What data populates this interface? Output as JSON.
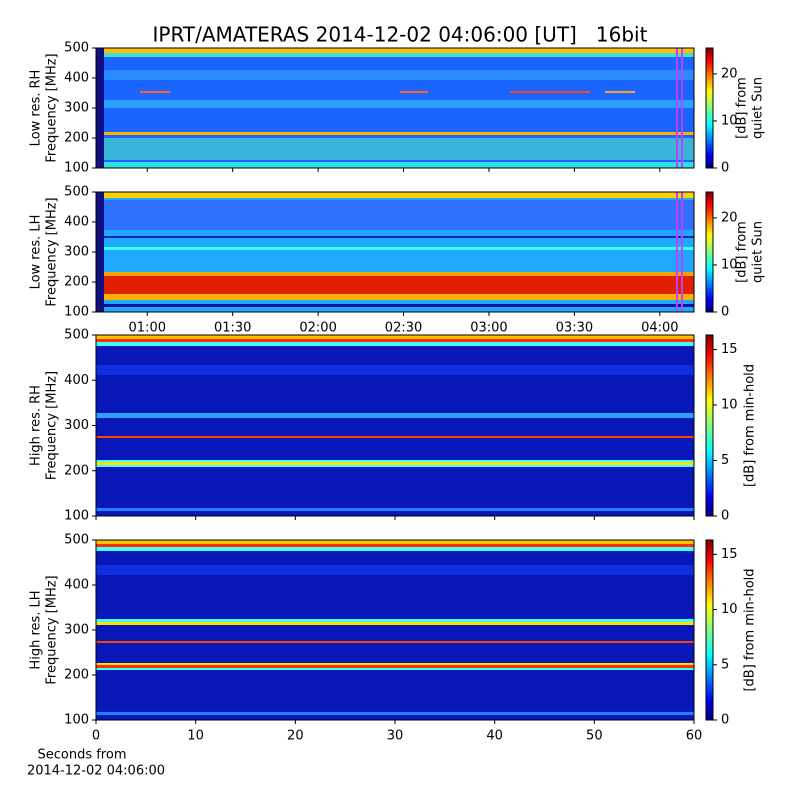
{
  "chart_data": [
    {
      "type": "spectrogram",
      "title": "IPRT/AMATERAS 2014-12-02 04:06:00 [UT]   16bit",
      "ylabel": [
        "Low res. RH",
        "Frequency [MHz]"
      ],
      "ylim": [
        100,
        500
      ],
      "yticks": [
        100,
        200,
        300,
        400,
        500
      ],
      "colorbar_label": [
        "[dB] from",
        "quiet Sun"
      ],
      "clim": [
        0,
        25.5
      ],
      "cticks": [
        0,
        10,
        20
      ]
    },
    {
      "type": "spectrogram",
      "ylabel": [
        "Low res. LH",
        "Frequency [MHz]"
      ],
      "ylim": [
        100,
        500
      ],
      "yticks": [
        100,
        200,
        300,
        400,
        500
      ],
      "xlim": [
        42,
        252
      ],
      "xticks": [
        {
          "value": 60,
          "label": "01:00"
        },
        {
          "value": 90,
          "label": "01:30"
        },
        {
          "value": 120,
          "label": "02:00"
        },
        {
          "value": 150,
          "label": "02:30"
        },
        {
          "value": 180,
          "label": "03:00"
        },
        {
          "value": 210,
          "label": "03:30"
        },
        {
          "value": 240,
          "label": "04:00"
        }
      ],
      "colorbar_label": [
        "[dB] from",
        "quiet Sun"
      ],
      "clim": [
        0,
        25.5
      ],
      "cticks": [
        0,
        10,
        20
      ]
    },
    {
      "type": "spectrogram",
      "ylabel": [
        "High res. RH",
        "Frequency [MHz]"
      ],
      "ylim": [
        100,
        500
      ],
      "yticks": [
        100,
        200,
        300,
        400,
        500
      ],
      "colorbar_label": [
        "[dB] from min-hold"
      ],
      "clim": [
        0,
        16.3
      ],
      "cticks": [
        0,
        5,
        10,
        15
      ]
    },
    {
      "type": "spectrogram",
      "ylabel": [
        "High res. LH",
        "Frequency [MHz]"
      ],
      "ylim": [
        100,
        500
      ],
      "yticks": [
        100,
        200,
        300,
        400,
        500
      ],
      "xlim": [
        0,
        60
      ],
      "xticks": [
        0,
        10,
        20,
        30,
        40,
        50,
        60
      ],
      "xlabel": [
        "Seconds from",
        "2014-12-02 04:06:00"
      ],
      "colorbar_label": [
        "[dB] from min-hold"
      ],
      "clim": [
        0,
        16.3
      ],
      "cticks": [
        0,
        5,
        10,
        15
      ]
    }
  ]
}
